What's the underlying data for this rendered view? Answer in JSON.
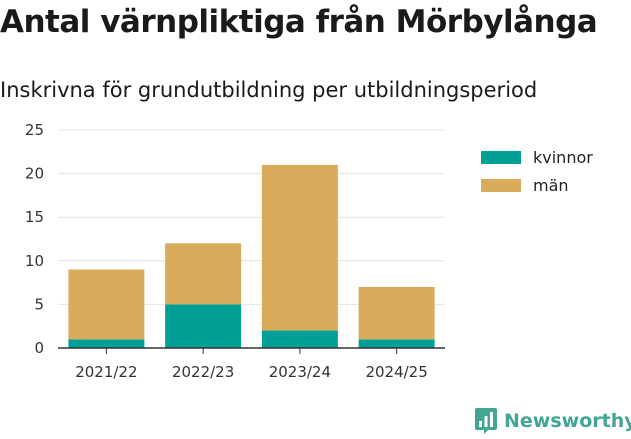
{
  "title": "Antal värnpliktiga från Mörbylånga",
  "subtitle": "Inskrivna för grundutbildning per utbildningsperiod",
  "brand": {
    "name": "Newsworthy",
    "color": "#43a593"
  },
  "colors": {
    "kvinnor": "#00a097",
    "man": "#d9ac5c"
  },
  "chart_data": {
    "type": "bar",
    "stacked": true,
    "categories": [
      "2021/22",
      "2022/23",
      "2023/24",
      "2024/25"
    ],
    "series": [
      {
        "name": "kvinnor",
        "values": [
          1,
          5,
          2,
          1
        ]
      },
      {
        "name": "män",
        "values": [
          8,
          7,
          19,
          6
        ]
      }
    ],
    "ylim": [
      0,
      25
    ],
    "yticks": [
      0,
      5,
      10,
      15,
      20,
      25
    ],
    "grid": true,
    "legend": "right"
  }
}
